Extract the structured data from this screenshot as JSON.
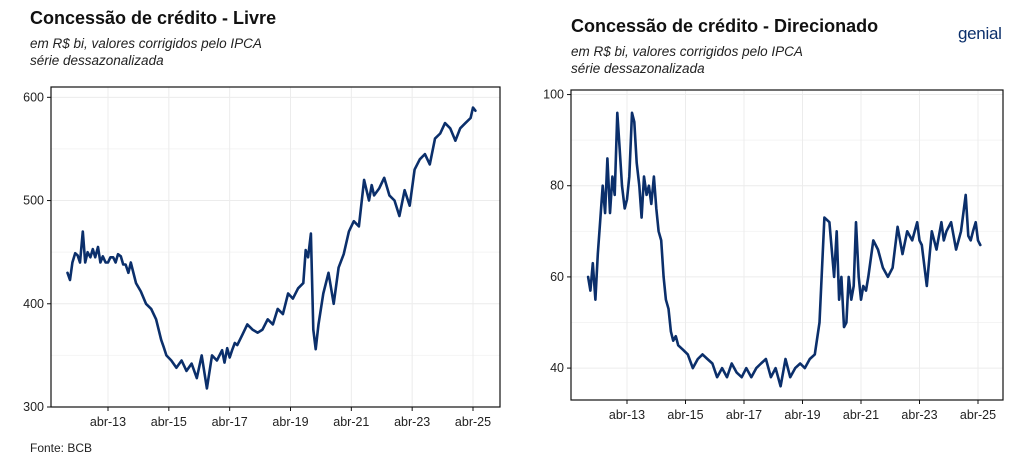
{
  "left": {
    "title": "Concessão de crédito - Livre",
    "subtitle_line1": "em R$ bi, valores corrigidos pelo IPCA",
    "subtitle_line2": "série dessazonalizada"
  },
  "right": {
    "title": "Concessão de crédito - Direcionado",
    "subtitle_line1": "em R$ bi, valores corrigidos pelo IPCA",
    "subtitle_line2": "série dessazonalizada"
  },
  "brand": "genial",
  "source": "Fonte: BCB",
  "colors": {
    "line": "#0b2f6b",
    "grid": "#ececec",
    "axis": "#111111"
  },
  "chart_data": [
    {
      "type": "line",
      "title": "Concessão de crédito - Livre",
      "x_tick_labels": [
        "abr-13",
        "abr-15",
        "abr-17",
        "abr-19",
        "abr-21",
        "abr-23",
        "abr-25"
      ],
      "x_tick_values": [
        2013.25,
        2015.25,
        2017.25,
        2019.25,
        2021.25,
        2023.25,
        2025.25
      ],
      "x_range": [
        2011.0,
        2026.0
      ],
      "y_ticks": [
        300,
        400,
        500,
        600
      ],
      "ylim": [
        300,
        610
      ],
      "grid": true,
      "series": [
        {
          "x": [
            2011.92,
            2012.0,
            2012.08,
            2012.17,
            2012.25,
            2012.33,
            2012.42,
            2012.5,
            2012.58,
            2012.67,
            2012.75,
            2012.83,
            2012.92,
            2013.0,
            2013.08,
            2013.17,
            2013.25,
            2013.33,
            2013.42,
            2013.5,
            2013.58,
            2013.67,
            2013.75,
            2013.83,
            2013.92,
            2014.0,
            2014.17,
            2014.33,
            2014.5,
            2014.67,
            2014.83,
            2015.0,
            2015.08,
            2015.17,
            2015.33,
            2015.5,
            2015.67,
            2015.83,
            2016.0,
            2016.17,
            2016.33,
            2016.5,
            2016.67,
            2016.83,
            2017.0,
            2017.08,
            2017.17,
            2017.25,
            2017.33,
            2017.42,
            2017.5,
            2017.67,
            2017.83,
            2018.0,
            2018.17,
            2018.33,
            2018.5,
            2018.67,
            2018.83,
            2019.0,
            2019.17,
            2019.33,
            2019.5,
            2019.67,
            2019.75,
            2019.83,
            2019.92,
            2020.0,
            2020.08,
            2020.17,
            2020.25,
            2020.33,
            2020.5,
            2020.67,
            2020.83,
            2021.0,
            2021.17,
            2021.33,
            2021.5,
            2021.67,
            2021.83,
            2021.92,
            2022.0,
            2022.17,
            2022.33,
            2022.5,
            2022.67,
            2022.83,
            2023.0,
            2023.17,
            2023.33,
            2023.5,
            2023.67,
            2023.83,
            2024.0,
            2024.17,
            2024.33,
            2024.5,
            2024.67,
            2024.83,
            2025.0,
            2025.17,
            2025.25,
            2025.33
          ],
          "y": [
            430,
            423,
            440,
            449,
            447,
            440,
            470,
            440,
            450,
            445,
            453,
            445,
            455,
            440,
            446,
            440,
            440,
            445,
            445,
            440,
            448,
            446,
            438,
            438,
            430,
            440,
            420,
            412,
            400,
            395,
            385,
            365,
            358,
            350,
            345,
            338,
            345,
            335,
            342,
            328,
            350,
            318,
            350,
            345,
            355,
            343,
            357,
            348,
            355,
            362,
            360,
            370,
            380,
            375,
            372,
            375,
            385,
            380,
            395,
            390,
            410,
            405,
            415,
            420,
            452,
            445,
            468,
            375,
            356,
            380,
            395,
            410,
            430,
            400,
            435,
            448,
            470,
            480,
            475,
            520,
            500,
            515,
            505,
            512,
            522,
            505,
            500,
            485,
            510,
            495,
            530,
            540,
            545,
            535,
            560,
            565,
            575,
            570,
            558,
            570,
            575,
            580,
            590,
            587
          ],
          "name": ""
        }
      ]
    },
    {
      "type": "line",
      "title": "Concessão de crédito - Direcionado",
      "x_tick_labels": [
        "abr-13",
        "abr-15",
        "abr-17",
        "abr-19",
        "abr-21",
        "abr-23",
        "abr-25"
      ],
      "x_tick_values": [
        2013.25,
        2015.25,
        2017.25,
        2019.25,
        2021.25,
        2023.25,
        2025.25
      ],
      "x_range": [
        2011.0,
        2026.0
      ],
      "y_ticks": [
        40,
        60,
        80,
        100
      ],
      "ylim": [
        33,
        101
      ],
      "grid": true,
      "series": [
        {
          "x": [
            2011.92,
            2012.0,
            2012.08,
            2012.17,
            2012.25,
            2012.33,
            2012.42,
            2012.5,
            2012.58,
            2012.67,
            2012.75,
            2012.83,
            2012.92,
            2013.0,
            2013.08,
            2013.17,
            2013.25,
            2013.33,
            2013.42,
            2013.5,
            2013.58,
            2013.67,
            2013.75,
            2013.83,
            2013.92,
            2014.0,
            2014.08,
            2014.17,
            2014.25,
            2014.33,
            2014.42,
            2014.5,
            2014.58,
            2014.67,
            2014.75,
            2014.83,
            2014.92,
            2015.0,
            2015.17,
            2015.33,
            2015.5,
            2015.67,
            2015.83,
            2016.0,
            2016.17,
            2016.33,
            2016.5,
            2016.67,
            2016.83,
            2017.0,
            2017.17,
            2017.33,
            2017.5,
            2017.67,
            2017.83,
            2018.0,
            2018.17,
            2018.33,
            2018.5,
            2018.67,
            2018.83,
            2019.0,
            2019.17,
            2019.33,
            2019.5,
            2019.67,
            2019.83,
            2020.0,
            2020.17,
            2020.33,
            2020.42,
            2020.5,
            2020.58,
            2020.67,
            2020.75,
            2020.83,
            2020.92,
            2021.0,
            2021.08,
            2021.17,
            2021.25,
            2021.33,
            2021.42,
            2021.5,
            2021.67,
            2021.83,
            2022.0,
            2022.17,
            2022.33,
            2022.5,
            2022.67,
            2022.83,
            2023.0,
            2023.17,
            2023.25,
            2023.33,
            2023.5,
            2023.67,
            2023.83,
            2024.0,
            2024.08,
            2024.17,
            2024.33,
            2024.5,
            2024.67,
            2024.83,
            2024.92,
            2025.0,
            2025.08,
            2025.17,
            2025.25,
            2025.33
          ],
          "y": [
            60,
            57,
            63,
            55,
            65,
            72,
            80,
            74,
            86,
            74,
            82,
            78,
            96,
            88,
            80,
            75,
            77,
            82,
            96,
            94,
            85,
            80,
            73,
            82,
            78,
            80,
            76,
            82,
            75,
            70,
            68,
            60,
            55,
            53,
            48,
            46,
            47,
            45,
            44,
            43,
            40,
            42,
            43,
            42,
            41,
            38,
            40,
            38,
            41,
            39,
            38,
            40,
            38,
            40,
            41,
            42,
            38,
            40,
            36,
            42,
            38,
            40,
            41,
            40,
            42,
            43,
            50,
            73,
            72,
            60,
            70,
            55,
            60,
            49,
            50,
            60,
            55,
            58,
            72,
            60,
            55,
            58,
            57,
            60,
            68,
            66,
            62,
            60,
            62,
            71,
            65,
            70,
            68,
            72,
            68,
            67,
            58,
            70,
            66,
            72,
            68,
            70,
            72,
            66,
            70,
            78,
            69,
            68,
            70,
            72,
            68,
            67
          ],
          "name": ""
        }
      ]
    }
  ]
}
